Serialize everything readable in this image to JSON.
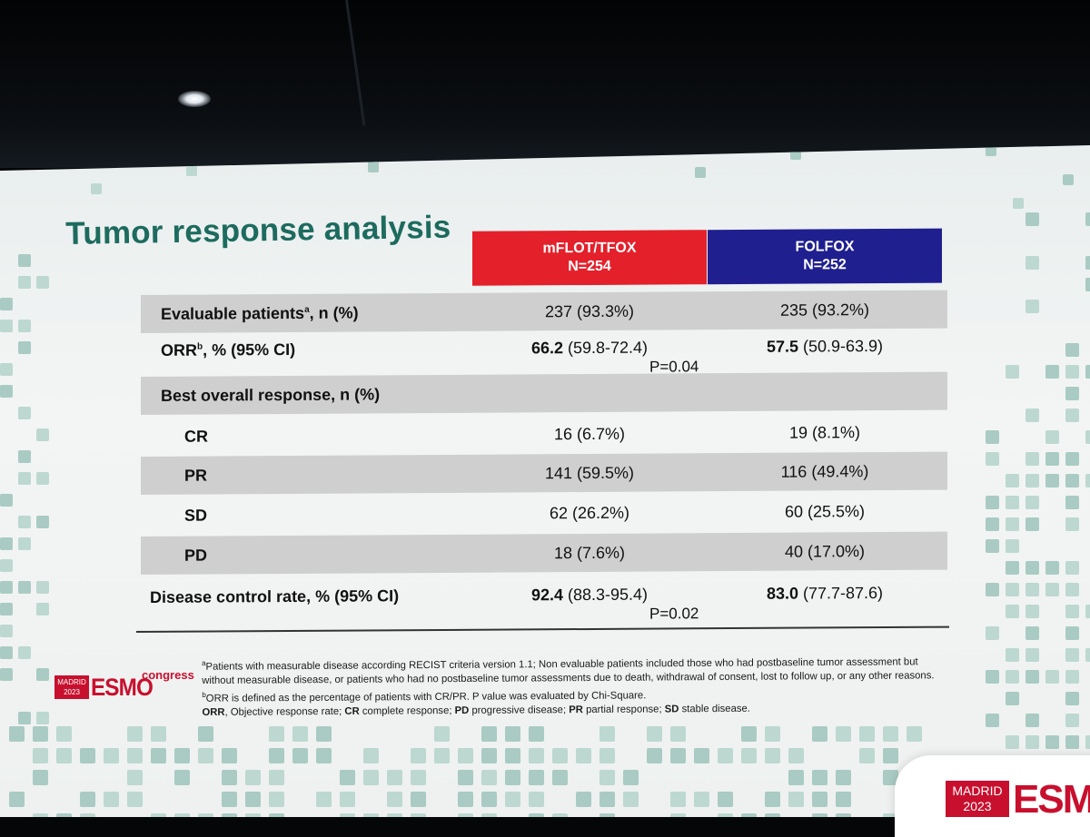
{
  "slide": {
    "title": "Tumor response analysis",
    "columns": [
      {
        "name": "mFLOT/TFOX",
        "n": "N=254",
        "color": "#e4202b"
      },
      {
        "name": "FOLFOX",
        "n": "N=252",
        "color": "#1f1f8f"
      }
    ],
    "rows": {
      "evaluable": {
        "label": "Evaluable patients",
        "sup": "a",
        "suffix": ", n (%)",
        "v1": "237 (93.3%)",
        "v2": "235 (93.2%)"
      },
      "orr": {
        "label": "ORR",
        "sup": "b",
        "suffix": ", % (95% CI)",
        "v1_bold": "66.2",
        "v1_rest": " (59.8-72.4)",
        "v2_bold": "57.5",
        "v2_rest": " (50.9-63.9)",
        "p": "P=0.04"
      },
      "best": {
        "label": "Best overall response, n (%)"
      },
      "cr": {
        "label": "CR",
        "v1": "16 (6.7%)",
        "v2": "19 (8.1%)"
      },
      "pr": {
        "label": "PR",
        "v1": "141 (59.5%)",
        "v2": "116 (49.4%)"
      },
      "sd": {
        "label": "SD",
        "v1": "62 (26.2%)",
        "v2": "60 (25.5%)"
      },
      "pd": {
        "label": "PD",
        "v1": "18 (7.6%)",
        "v2": "40 (17.0%)"
      },
      "dcr": {
        "label": "Disease control rate, % (95% CI)",
        "v1_bold": "92.4",
        "v1_rest": " (88.3-95.4)",
        "v2_bold": "83.0",
        "v2_rest": " (77.7-87.6)",
        "p": "P=0.02"
      }
    },
    "footnotes": {
      "a_mark": "a",
      "a_text": "Patients with measurable disease according RECIST criteria version 1.1; Non evaluable patients included those who had postbaseline tumor assessment but without measurable disease, or patients who had no postbaseline tumor assessments due to death, withdrawal of consent, lost to follow up, or any other reasons. ",
      "b_mark": "b",
      "b_text": "ORR is defined as the percentage of patients with CR/PR. P value was evaluated by Chi-Square.",
      "abbr": [
        {
          "term": "ORR",
          "def": ", Objective response rate; "
        },
        {
          "term": "CR",
          "def": " complete response; "
        },
        {
          "term": "PD",
          "def": " progressive disease; "
        },
        {
          "term": "PR",
          "def": " partial response; "
        },
        {
          "term": "SD",
          "def": " stable disease."
        }
      ]
    },
    "logo": {
      "city": "MADRID",
      "year": "2023",
      "word": "ESMO",
      "tag": "congress"
    },
    "corner_logo": {
      "city": "MADRID",
      "year": "2023",
      "word": "ESMO"
    }
  }
}
